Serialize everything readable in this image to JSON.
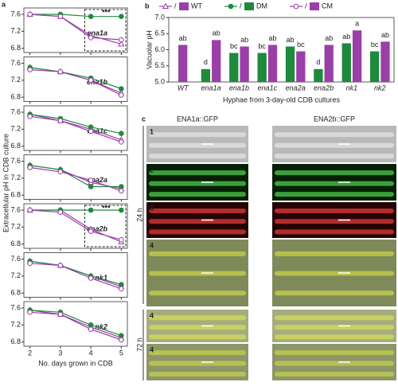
{
  "chart_data": [
    {
      "type": "line",
      "panel_label": "a",
      "ylabel": "Extracellular pH in CDB culture",
      "subtitle": "ena1a",
      "annotation": "***",
      "x": [
        2,
        3,
        4,
        5
      ],
      "xlim": [
        1.8,
        5.2
      ],
      "ylim": [
        6.7,
        7.75
      ],
      "yticks": [
        6.8,
        7.2,
        7.6
      ],
      "series": [
        {
          "color": "#9b3fa8",
          "marker": "triangle-open",
          "values": [
            7.6,
            7.55,
            7.1,
            6.9
          ]
        },
        {
          "color": "#1e8a3c",
          "marker": "circle-filled",
          "values": [
            7.6,
            7.6,
            7.55,
            7.55
          ]
        },
        {
          "color": "#9b3fa8",
          "marker": "circle-open",
          "values": [
            7.6,
            7.55,
            7.05,
            7.0
          ]
        }
      ]
    },
    {
      "type": "line",
      "subtitle": "ena1b",
      "x": [
        2,
        3,
        4,
        5
      ],
      "xlim": [
        1.8,
        5.2
      ],
      "ylim": [
        6.7,
        7.75
      ],
      "yticks": [
        6.8,
        7.2,
        7.6
      ],
      "series": [
        {
          "color": "#9b3fa8",
          "marker": "triangle-open",
          "values": [
            7.5,
            7.4,
            7.2,
            6.9
          ]
        },
        {
          "color": "#1e8a3c",
          "marker": "circle-filled",
          "values": [
            7.5,
            7.4,
            7.25,
            7.0
          ]
        },
        {
          "color": "#9b3fa8",
          "marker": "circle-open",
          "values": [
            7.45,
            7.4,
            7.2,
            6.85
          ]
        }
      ]
    },
    {
      "type": "line",
      "subtitle": "ena1c",
      "x": [
        2,
        3,
        4,
        5
      ],
      "xlim": [
        1.8,
        5.2
      ],
      "ylim": [
        6.7,
        7.75
      ],
      "yticks": [
        6.8,
        7.2,
        7.6
      ],
      "series": [
        {
          "color": "#9b3fa8",
          "marker": "triangle-open",
          "values": [
            7.55,
            7.4,
            7.2,
            6.95
          ]
        },
        {
          "color": "#1e8a3c",
          "marker": "circle-filled",
          "values": [
            7.55,
            7.45,
            7.25,
            7.1
          ]
        },
        {
          "color": "#9b3fa8",
          "marker": "circle-open",
          "values": [
            7.5,
            7.4,
            7.15,
            6.9
          ]
        }
      ]
    },
    {
      "type": "line",
      "subtitle": "ena2a",
      "x": [
        2,
        3,
        4,
        5
      ],
      "xlim": [
        1.8,
        5.2
      ],
      "ylim": [
        6.7,
        7.75
      ],
      "yticks": [
        6.8,
        7.2,
        7.6
      ],
      "series": [
        {
          "color": "#9b3fa8",
          "marker": "triangle-open",
          "values": [
            7.5,
            7.4,
            7.1,
            6.95
          ]
        },
        {
          "color": "#1e8a3c",
          "marker": "circle-filled",
          "values": [
            7.5,
            7.4,
            7.0,
            7.0
          ]
        },
        {
          "color": "#9b3fa8",
          "marker": "circle-open",
          "values": [
            7.45,
            7.35,
            7.15,
            6.9
          ]
        }
      ]
    },
    {
      "type": "line",
      "subtitle": "ena2b",
      "annotation": "***",
      "x": [
        2,
        3,
        4,
        5
      ],
      "xlim": [
        1.8,
        5.2
      ],
      "ylim": [
        6.7,
        7.75
      ],
      "yticks": [
        6.8,
        7.2,
        7.6
      ],
      "series": [
        {
          "color": "#9b3fa8",
          "marker": "triangle-open",
          "values": [
            7.6,
            7.6,
            7.15,
            6.85
          ]
        },
        {
          "color": "#1e8a3c",
          "marker": "circle-filled",
          "values": [
            7.6,
            7.6,
            7.6,
            7.6
          ]
        },
        {
          "color": "#9b3fa8",
          "marker": "circle-open",
          "values": [
            7.6,
            7.55,
            7.1,
            6.9
          ]
        }
      ]
    },
    {
      "type": "line",
      "subtitle": "nk1",
      "x": [
        2,
        3,
        4,
        5
      ],
      "xlim": [
        1.8,
        5.2
      ],
      "ylim": [
        6.7,
        7.75
      ],
      "yticks": [
        6.8,
        7.2,
        7.6
      ],
      "series": [
        {
          "color": "#9b3fa8",
          "marker": "triangle-open",
          "values": [
            7.55,
            7.45,
            7.2,
            6.95
          ]
        },
        {
          "color": "#1e8a3c",
          "marker": "circle-filled",
          "values": [
            7.55,
            7.45,
            7.2,
            7.0
          ]
        },
        {
          "color": "#9b3fa8",
          "marker": "circle-open",
          "values": [
            7.5,
            7.45,
            7.15,
            6.9
          ]
        }
      ]
    },
    {
      "type": "line",
      "subtitle": "nk2",
      "xlabel": "No. days grown in CDB",
      "xticks": [
        2,
        3,
        4,
        5
      ],
      "x": [
        2,
        3,
        4,
        5
      ],
      "xlim": [
        1.8,
        5.2
      ],
      "ylim": [
        6.7,
        7.75
      ],
      "yticks": [
        6.8,
        7.2,
        7.6
      ],
      "series": [
        {
          "color": "#9b3fa8",
          "marker": "triangle-open",
          "values": [
            7.55,
            7.45,
            7.15,
            6.9
          ]
        },
        {
          "color": "#1e8a3c",
          "marker": "circle-filled",
          "values": [
            7.55,
            7.5,
            7.2,
            6.95
          ]
        },
        {
          "color": "#9b3fa8",
          "marker": "circle-open",
          "values": [
            7.5,
            7.45,
            7.1,
            6.85
          ]
        }
      ]
    },
    {
      "type": "bar",
      "panel_label": "b",
      "ylabel": "Vacuolar pH",
      "xlabel": "Hyphae from 3-day-old CDB cultures",
      "categories": [
        "WT",
        "ena1a",
        "ena1b",
        "ena1c",
        "ena2a",
        "ena2b",
        "nk1",
        "nk2"
      ],
      "ylim": [
        5,
        7
      ],
      "yticks": [
        {
          "value": 5,
          "label": "5.0"
        },
        5.5,
        {
          "value": 6,
          "label": "6.0"
        },
        6.5,
        {
          "value": 7,
          "label": "7.0"
        }
      ],
      "series": [
        {
          "name": "WT",
          "color": "#9b3fa8",
          "marker": "triangle-open",
          "values": [
            6.15,
            null,
            null,
            null,
            null,
            null,
            null,
            null
          ],
          "letters": [
            "ab",
            null,
            null,
            null,
            null,
            null,
            null,
            null
          ]
        },
        {
          "name": "DM",
          "color": "#1e8a3c",
          "marker": "circle-filled",
          "values": [
            null,
            5.4,
            5.9,
            5.9,
            6.1,
            5.4,
            6.2,
            5.95
          ],
          "letters": [
            null,
            "d",
            "bc",
            "bc",
            "ab",
            "d",
            "ab",
            "bc"
          ]
        },
        {
          "name": "CM",
          "color": "#9b3fa8",
          "marker": "circle-open",
          "values": [
            null,
            6.3,
            6.1,
            6.15,
            5.95,
            6.15,
            6.6,
            6.25
          ],
          "letters": [
            null,
            "ab",
            "ab",
            "ab",
            "bc",
            "ab",
            "a",
            "ab"
          ]
        }
      ]
    }
  ],
  "image_panel": {
    "panel_label": "c",
    "columns": [
      "ENA1a::GFP",
      "ENA2b::GFP"
    ],
    "row_labels": [
      "1",
      "2",
      "3",
      "4",
      "4",
      "4"
    ],
    "time_labels": [
      "24 h",
      "72 h"
    ]
  }
}
